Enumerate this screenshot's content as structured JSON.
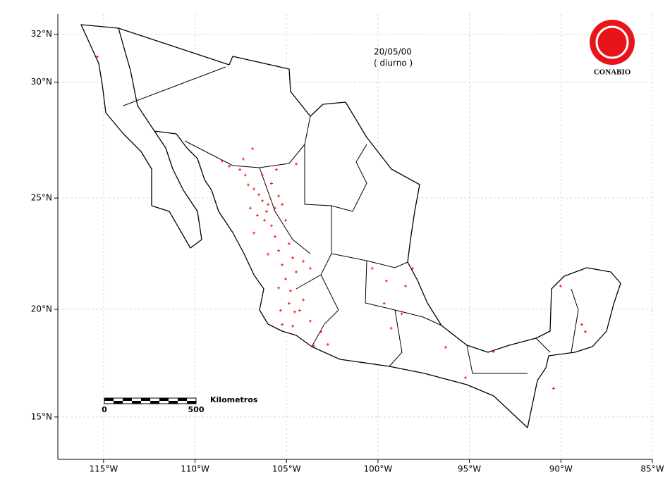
{
  "chart_data": {
    "type": "scatter",
    "projection": "mercator",
    "annotations": [
      "20/05/00",
      "( diurno )"
    ],
    "logo": "CONABIO",
    "scale_bar": {
      "start": 0,
      "end": 500,
      "unit": "Kilometros"
    },
    "xlim": [
      -117.5,
      -85
    ],
    "ylim": [
      13,
      32.6
    ],
    "xticks": [
      {
        "value": -115,
        "label": "115°W"
      },
      {
        "value": -110,
        "label": "110°W"
      },
      {
        "value": -105,
        "label": "105°W"
      },
      {
        "value": -100,
        "label": "100°W"
      },
      {
        "value": -95,
        "label": "95°W"
      },
      {
        "value": -90,
        "label": "90°W"
      },
      {
        "value": -85,
        "label": "85°W"
      }
    ],
    "yticks": [
      {
        "value": 15,
        "label": "15°N"
      },
      {
        "value": 20,
        "label": "20°N"
      },
      {
        "value": 25,
        "label": "25°N"
      },
      {
        "value": 30,
        "label": "30°N"
      },
      {
        "value": 32,
        "label": "32°N"
      }
    ],
    "grid": true,
    "color": "#ff0000",
    "x": [
      -115.34,
      -106.86,
      -108.52,
      -108.13,
      -107.55,
      -107.25,
      -107.09,
      -106.78,
      -106.51,
      -106.32,
      -106.01,
      -106.98,
      -105.63,
      -105.24,
      -106.59,
      -106.2,
      -105.82,
      -105.05,
      -105.55,
      -107.36,
      -104.47,
      -104.86,
      -105.43,
      -104.66,
      -105.24,
      -104.47,
      -105.05,
      -105.43,
      -104.78,
      -104.08,
      -104.86,
      -105.32,
      -104.28,
      -103.7,
      -104.66,
      -103.12,
      -103.51,
      -102.74,
      -100.31,
      -99.54,
      -98.49,
      -98.11,
      -99.66,
      -98.7,
      -99.28,
      -96.3,
      -95.22,
      -93.68,
      -90.4,
      -90.02,
      -88.86,
      -88.66,
      -103.7,
      -104.08,
      -105.82,
      -105.43,
      -106.32,
      -106.09,
      -106.78,
      -105.63,
      -106.01,
      -104.55,
      -105.24
    ],
    "y": [
      31.07,
      27.16,
      26.62,
      26.4,
      26.25,
      26.01,
      25.58,
      25.4,
      25.15,
      24.88,
      24.72,
      24.56,
      24.56,
      24.72,
      24.24,
      24.02,
      23.77,
      24.02,
      26.25,
      26.71,
      26.49,
      22.97,
      22.66,
      22.34,
      22.02,
      21.7,
      21.38,
      20.97,
      20.84,
      20.43,
      20.27,
      19.95,
      19.95,
      19.46,
      19.23,
      18.97,
      18.31,
      18.38,
      21.86,
      21.29,
      21.06,
      21.86,
      20.27,
      19.79,
      19.13,
      18.25,
      16.84,
      18.05,
      16.34,
      21.06,
      19.3,
      18.97,
      21.86,
      22.18,
      25.64,
      25.09,
      26.01,
      24.4,
      23.45,
      23.29,
      22.5,
      19.88,
      19.3
    ]
  }
}
